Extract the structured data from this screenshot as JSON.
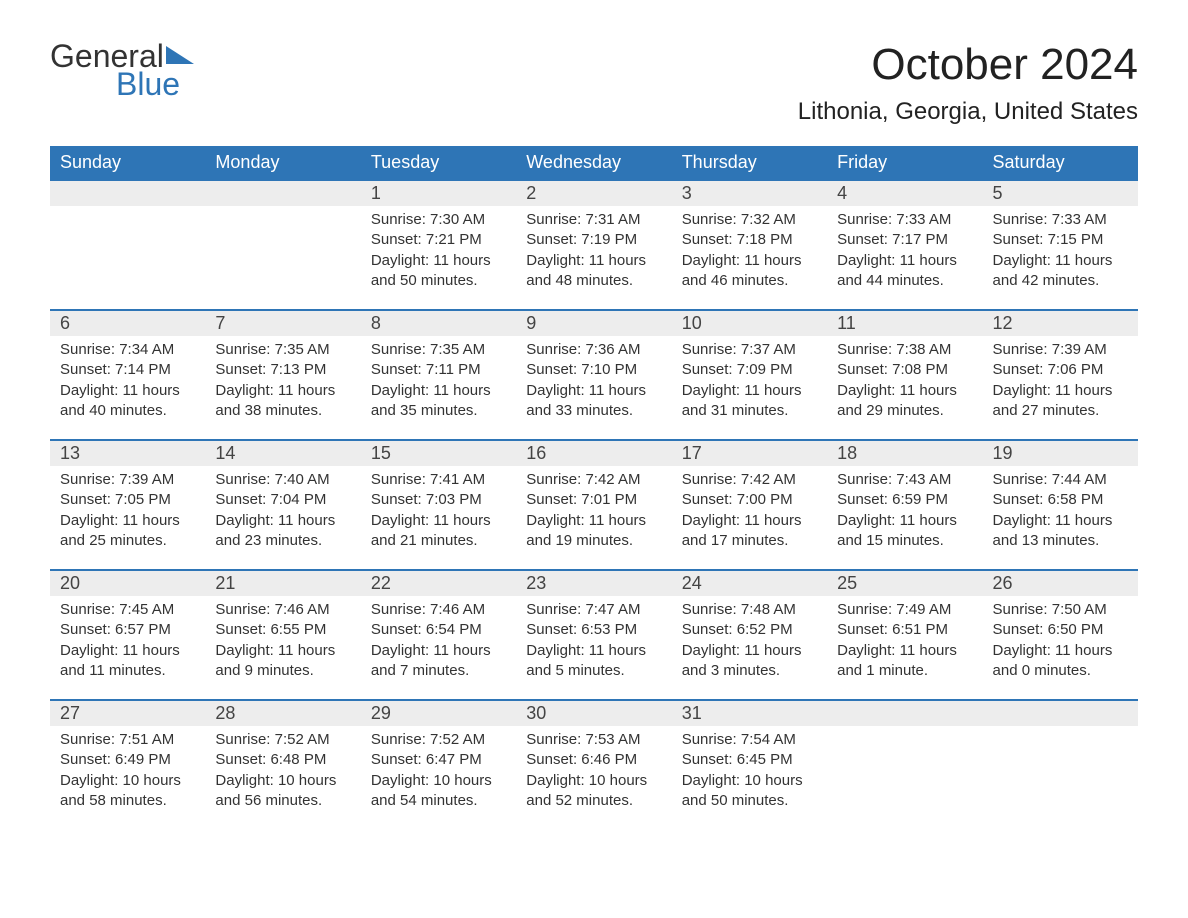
{
  "logo": {
    "text_top": "General",
    "text_bottom": "Blue",
    "shape_color": "#2e75b6",
    "top_color": "#333333",
    "bottom_color": "#2e75b6"
  },
  "title": "October 2024",
  "location": "Lithonia, Georgia, United States",
  "colors": {
    "header_bg": "#2e75b6",
    "header_text": "#ffffff",
    "daynum_bg": "#ededed",
    "row_border": "#2e75b6",
    "body_text": "#333333",
    "page_bg": "#ffffff"
  },
  "fonts": {
    "title_size_pt": 33,
    "location_size_pt": 18,
    "dayheader_size_pt": 14,
    "body_size_pt": 11
  },
  "day_headers": [
    "Sunday",
    "Monday",
    "Tuesday",
    "Wednesday",
    "Thursday",
    "Friday",
    "Saturday"
  ],
  "weeks": [
    [
      null,
      null,
      {
        "n": "1",
        "sunrise": "7:30 AM",
        "sunset": "7:21 PM",
        "daylight": "11 hours and 50 minutes."
      },
      {
        "n": "2",
        "sunrise": "7:31 AM",
        "sunset": "7:19 PM",
        "daylight": "11 hours and 48 minutes."
      },
      {
        "n": "3",
        "sunrise": "7:32 AM",
        "sunset": "7:18 PM",
        "daylight": "11 hours and 46 minutes."
      },
      {
        "n": "4",
        "sunrise": "7:33 AM",
        "sunset": "7:17 PM",
        "daylight": "11 hours and 44 minutes."
      },
      {
        "n": "5",
        "sunrise": "7:33 AM",
        "sunset": "7:15 PM",
        "daylight": "11 hours and 42 minutes."
      }
    ],
    [
      {
        "n": "6",
        "sunrise": "7:34 AM",
        "sunset": "7:14 PM",
        "daylight": "11 hours and 40 minutes."
      },
      {
        "n": "7",
        "sunrise": "7:35 AM",
        "sunset": "7:13 PM",
        "daylight": "11 hours and 38 minutes."
      },
      {
        "n": "8",
        "sunrise": "7:35 AM",
        "sunset": "7:11 PM",
        "daylight": "11 hours and 35 minutes."
      },
      {
        "n": "9",
        "sunrise": "7:36 AM",
        "sunset": "7:10 PM",
        "daylight": "11 hours and 33 minutes."
      },
      {
        "n": "10",
        "sunrise": "7:37 AM",
        "sunset": "7:09 PM",
        "daylight": "11 hours and 31 minutes."
      },
      {
        "n": "11",
        "sunrise": "7:38 AM",
        "sunset": "7:08 PM",
        "daylight": "11 hours and 29 minutes."
      },
      {
        "n": "12",
        "sunrise": "7:39 AM",
        "sunset": "7:06 PM",
        "daylight": "11 hours and 27 minutes."
      }
    ],
    [
      {
        "n": "13",
        "sunrise": "7:39 AM",
        "sunset": "7:05 PM",
        "daylight": "11 hours and 25 minutes."
      },
      {
        "n": "14",
        "sunrise": "7:40 AM",
        "sunset": "7:04 PM",
        "daylight": "11 hours and 23 minutes."
      },
      {
        "n": "15",
        "sunrise": "7:41 AM",
        "sunset": "7:03 PM",
        "daylight": "11 hours and 21 minutes."
      },
      {
        "n": "16",
        "sunrise": "7:42 AM",
        "sunset": "7:01 PM",
        "daylight": "11 hours and 19 minutes."
      },
      {
        "n": "17",
        "sunrise": "7:42 AM",
        "sunset": "7:00 PM",
        "daylight": "11 hours and 17 minutes."
      },
      {
        "n": "18",
        "sunrise": "7:43 AM",
        "sunset": "6:59 PM",
        "daylight": "11 hours and 15 minutes."
      },
      {
        "n": "19",
        "sunrise": "7:44 AM",
        "sunset": "6:58 PM",
        "daylight": "11 hours and 13 minutes."
      }
    ],
    [
      {
        "n": "20",
        "sunrise": "7:45 AM",
        "sunset": "6:57 PM",
        "daylight": "11 hours and 11 minutes."
      },
      {
        "n": "21",
        "sunrise": "7:46 AM",
        "sunset": "6:55 PM",
        "daylight": "11 hours and 9 minutes."
      },
      {
        "n": "22",
        "sunrise": "7:46 AM",
        "sunset": "6:54 PM",
        "daylight": "11 hours and 7 minutes."
      },
      {
        "n": "23",
        "sunrise": "7:47 AM",
        "sunset": "6:53 PM",
        "daylight": "11 hours and 5 minutes."
      },
      {
        "n": "24",
        "sunrise": "7:48 AM",
        "sunset": "6:52 PM",
        "daylight": "11 hours and 3 minutes."
      },
      {
        "n": "25",
        "sunrise": "7:49 AM",
        "sunset": "6:51 PM",
        "daylight": "11 hours and 1 minute."
      },
      {
        "n": "26",
        "sunrise": "7:50 AM",
        "sunset": "6:50 PM",
        "daylight": "11 hours and 0 minutes."
      }
    ],
    [
      {
        "n": "27",
        "sunrise": "7:51 AM",
        "sunset": "6:49 PM",
        "daylight": "10 hours and 58 minutes."
      },
      {
        "n": "28",
        "sunrise": "7:52 AM",
        "sunset": "6:48 PM",
        "daylight": "10 hours and 56 minutes."
      },
      {
        "n": "29",
        "sunrise": "7:52 AM",
        "sunset": "6:47 PM",
        "daylight": "10 hours and 54 minutes."
      },
      {
        "n": "30",
        "sunrise": "7:53 AM",
        "sunset": "6:46 PM",
        "daylight": "10 hours and 52 minutes."
      },
      {
        "n": "31",
        "sunrise": "7:54 AM",
        "sunset": "6:45 PM",
        "daylight": "10 hours and 50 minutes."
      },
      null,
      null
    ]
  ],
  "labels": {
    "sunrise": "Sunrise: ",
    "sunset": "Sunset: ",
    "daylight": "Daylight: "
  }
}
